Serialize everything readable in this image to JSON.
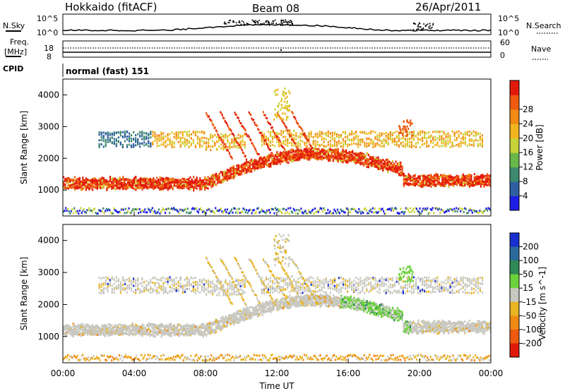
{
  "header": {
    "station": "Hokkaido (fitACF)",
    "beam": "Beam 08",
    "date": "26/Apr/2011"
  },
  "noise_panel": {
    "left_label": "N.Sky",
    "right_label": "N.Search",
    "left_ticks": [
      "10^5",
      "10^0"
    ],
    "right_ticks": [
      "10^5",
      "10^0"
    ]
  },
  "freq_panel": {
    "left_label_line1": "Freq.",
    "left_label_line2": "[MHz]",
    "right_label": "Nave",
    "left_ticks": [
      "18",
      "8"
    ],
    "right_ticks": [
      "60",
      "0"
    ]
  },
  "cpid_panel": {
    "label": "CPID",
    "text": "normal (fast) 151"
  },
  "time_axis": {
    "label": "Time UT",
    "ticks": [
      "00:00",
      "04:00",
      "08:00",
      "12:00",
      "16:00",
      "20:00",
      "00:00"
    ]
  },
  "chart_data": [
    {
      "type": "heatmap",
      "name": "power",
      "ylabel": "Slant Range [km]",
      "xlabel": "Time UT",
      "ylim": [
        180,
        4500
      ],
      "y_ticks": [
        "1000",
        "2000",
        "3000",
        "4000"
      ],
      "colorbar_label": "Power [dB]",
      "colorbar_ticks": [
        "4",
        "8",
        "12",
        "16",
        "20",
        "24",
        "28"
      ],
      "colorbar_colors": [
        "#1e1ee6",
        "#2f5fa0",
        "#3d8a6e",
        "#6bb84a",
        "#c8d23a",
        "#f2b51e",
        "#f28a14",
        "#ee5a10",
        "#e21a0c"
      ]
    },
    {
      "type": "heatmap",
      "name": "velocity",
      "ylabel": "Slant Range [km]",
      "xlabel": "Time UT",
      "ylim": [
        180,
        4500
      ],
      "y_ticks": [
        "1000",
        "2000",
        "3000",
        "4000"
      ],
      "colorbar_label": "Velocity [m s^-1]",
      "colorbar_ticks": [
        "200",
        "100",
        "50",
        "15",
        "-15",
        "-50",
        "-100",
        "-200"
      ],
      "colorbar_colors": [
        "#1a2fd0",
        "#2a6a9a",
        "#2f8a55",
        "#6cd23a",
        "#c8c8c0",
        "#e8b420",
        "#f08a14",
        "#ee5a10",
        "#e01a0a"
      ]
    }
  ]
}
